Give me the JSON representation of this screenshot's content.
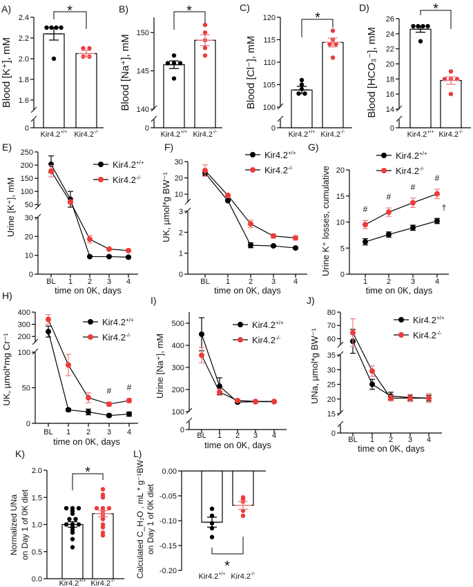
{
  "chart_data": [
    {
      "id": "A",
      "panel_label": "A)",
      "type": "bar",
      "ylabel": "Blood [K⁺], mM",
      "y_axis_segments": [
        [
          0,
          0
        ],
        [
          1.5,
          2.4
        ]
      ],
      "yticks": [
        "0",
        "1.6",
        "1.8",
        "2.0",
        "2.2",
        "2.4"
      ],
      "categories": [
        {
          "label": "Kir4.2",
          "sup": "+/+"
        },
        {
          "label": "Kir4.2",
          "sup": "-/-"
        }
      ],
      "series": [
        {
          "mean": 2.24,
          "sem": 0.06,
          "points": [
            2.3,
            2.3,
            2.3,
            2.3,
            2.0
          ],
          "color": "#000000"
        },
        {
          "mean": 2.05,
          "sem": 0.03,
          "points": [
            2.1,
            2.1,
            2.02,
            2.02
          ],
          "color": "#ee3a3a"
        }
      ],
      "significance": "*"
    },
    {
      "id": "B",
      "panel_label": "B)",
      "type": "bar",
      "ylabel": "Blood [Na⁺], mM",
      "y_axis_segments": [
        [
          0,
          0
        ],
        [
          140,
          152
        ]
      ],
      "yticks": [
        "0",
        "140",
        "145",
        "150"
      ],
      "categories": [
        {
          "label": "Kir4.2",
          "sup": "+/+"
        },
        {
          "label": "Kir4.2",
          "sup": "-/-"
        }
      ],
      "series": [
        {
          "mean": 145.8,
          "sem": 0.5,
          "points": [
            147,
            146,
            146,
            146,
            144
          ],
          "color": "#000000"
        },
        {
          "mean": 149,
          "sem": 0.7,
          "points": [
            151,
            150,
            149,
            148,
            147
          ],
          "color": "#ee3a3a"
        }
      ],
      "significance": "*"
    },
    {
      "id": "C",
      "panel_label": "C)",
      "type": "bar",
      "ylabel": "Blood [Cl⁻], mM",
      "y_axis_segments": [
        [
          0,
          0
        ],
        [
          100,
          120
        ]
      ],
      "yticks": [
        "0",
        "100",
        "105",
        "110",
        "115",
        "120"
      ],
      "categories": [
        {
          "label": "Kir4.2",
          "sup": "+/+"
        },
        {
          "label": "Kir4.2",
          "sup": "-/-"
        }
      ],
      "series": [
        {
          "mean": 103.8,
          "sem": 0.8,
          "points": [
            106,
            105,
            104,
            103,
            103
          ],
          "color": "#000000"
        },
        {
          "mean": 114.4,
          "sem": 1.0,
          "points": [
            117,
            115,
            114,
            114,
            111
          ],
          "color": "#ee3a3a"
        }
      ],
      "significance": "*"
    },
    {
      "id": "D",
      "panel_label": "D)",
      "type": "bar",
      "ylabel": "Blood [HCO₃⁻], mM",
      "y_axis_segments": [
        [
          0,
          0
        ],
        [
          14,
          26
        ]
      ],
      "yticks": [
        "0",
        "14",
        "16",
        "18",
        "20",
        "22",
        "24",
        "26"
      ],
      "categories": [
        {
          "label": "Kir4.2",
          "sup": "+/+"
        },
        {
          "label": "Kir4.2",
          "sup": "-/-"
        }
      ],
      "series": [
        {
          "mean": 24.6,
          "sem": 0.4,
          "points": [
            25,
            25,
            25,
            25,
            23
          ],
          "color": "#000000"
        },
        {
          "mean": 17.8,
          "sem": 0.5,
          "points": [
            19,
            18,
            18,
            18,
            16
          ],
          "color": "#ee3a3a"
        }
      ],
      "significance": "*"
    },
    {
      "id": "E",
      "panel_label": "E)",
      "type": "line",
      "ylabel": "Urine [K⁺], mM",
      "xlabel": "time on 0K, days",
      "x_categories": [
        "BL",
        "1",
        "2",
        "3",
        "4"
      ],
      "y_axis_segments": [
        [
          0,
          30
        ],
        [
          40,
          250
        ]
      ],
      "yticks": [
        "0",
        "10",
        "20",
        "30",
        "50",
        "100",
        "150",
        "200",
        "250"
      ],
      "series": [
        {
          "name": {
            "label": "Kir4.2",
            "sup": "+/+"
          },
          "color": "#000000",
          "values": [
            203,
            70,
            9.3,
            9.3,
            9
          ],
          "sem": [
            32,
            30,
            0.3,
            0.3,
            0.4
          ]
        },
        {
          "name": {
            "label": "Kir4.2",
            "sup": "-/-"
          },
          "color": "#ee3a3a",
          "values": [
            177,
            60,
            18.5,
            13.3,
            12.5
          ],
          "sem": [
            22,
            8,
            2,
            0.6,
            0.5
          ]
        }
      ],
      "annotations": []
    },
    {
      "id": "F",
      "panel_label": "F)",
      "type": "line",
      "ylabel": "UK, µmol*g BW⁻¹",
      "xlabel": "time on 0K, days",
      "x_categories": [
        "BL",
        "1",
        "2",
        "3",
        "4"
      ],
      "y_axis_segments": [
        [
          0,
          3
        ],
        [
          5,
          30
        ]
      ],
      "yticks": [
        "0",
        "1",
        "2",
        "3",
        "10",
        "20",
        "30"
      ],
      "series": [
        {
          "name": {
            "label": "Kir4.2",
            "sup": "+/+"
          },
          "color": "#000000",
          "values": [
            23,
            6,
            1.38,
            1.35,
            1.25
          ],
          "sem": [
            1.5,
            0.5,
            0.12,
            0.05,
            0.05
          ]
        },
        {
          "name": {
            "label": "Kir4.2",
            "sup": "-/-"
          },
          "color": "#ee3a3a",
          "values": [
            24.5,
            9.3,
            2.4,
            1.82,
            1.73
          ],
          "sem": [
            3.5,
            0.5,
            0.18,
            0.1,
            0.1
          ]
        }
      ],
      "annotations": []
    },
    {
      "id": "G",
      "panel_label": "G)",
      "type": "line",
      "ylabel": "Urine K⁺ losses, cumulative",
      "xlabel": "time on 0K, days",
      "x_categories": [
        "1",
        "2",
        "3",
        "4"
      ],
      "y_axis_segments": [
        [
          0,
          20
        ]
      ],
      "yticks": [
        "0",
        "5",
        "10",
        "15",
        "20"
      ],
      "series": [
        {
          "name": {
            "label": "Kir4.2",
            "sup": "+/+"
          },
          "color": "#000000",
          "values": [
            6.2,
            7.6,
            8.9,
            10.2
          ],
          "sem": [
            0.6,
            0.5,
            0.5,
            0.5
          ]
        },
        {
          "name": {
            "label": "Kir4.2",
            "sup": "-/-"
          },
          "color": "#ee3a3a",
          "values": [
            9.5,
            11.9,
            13.7,
            15.4
          ],
          "sem": [
            0.8,
            0.8,
            0.9,
            0.9
          ]
        }
      ],
      "annotations": [
        {
          "text": "#",
          "x": "1"
        },
        {
          "text": "#",
          "x": "2"
        },
        {
          "text": "#",
          "x": "3"
        },
        {
          "text": "#",
          "x": "4"
        },
        {
          "text": "†",
          "x": "4",
          "between_series": true
        }
      ]
    },
    {
      "id": "H",
      "panel_label": "H)",
      "type": "line",
      "ylabel": "UK, µmol*mg Cr⁻¹",
      "xlabel": "time on 0K, days",
      "x_categories": [
        "BL",
        "1",
        "2",
        "3",
        "4"
      ],
      "y_axis_segments": [
        [
          0,
          100
        ],
        [
          150,
          400
        ]
      ],
      "yticks": [
        "0",
        "50",
        "100",
        "200",
        "300",
        "400"
      ],
      "series": [
        {
          "name": {
            "label": "Kir4.2",
            "sup": "+/+"
          },
          "color": "#000000",
          "values": [
            240,
            19,
            16,
            11,
            13
          ],
          "sem": [
            45,
            2,
            4,
            2,
            3
          ]
        },
        {
          "name": {
            "label": "Kir4.2",
            "sup": "-/-"
          },
          "color": "#ee3a3a",
          "values": [
            340,
            82,
            36,
            27,
            32
          ],
          "sem": [
            40,
            15,
            7,
            3,
            3
          ]
        }
      ],
      "annotations": [
        {
          "text": "#",
          "x": "3"
        },
        {
          "text": "#",
          "x": "4"
        }
      ]
    },
    {
      "id": "I",
      "panel_label": "I)",
      "type": "line",
      "ylabel": "Urine [Na⁺], mM",
      "xlabel": "time on 0K, days",
      "x_categories": [
        "BL",
        "1",
        "2",
        "3",
        "4"
      ],
      "y_axis_segments": [
        [
          0,
          0
        ],
        [
          100,
          550
        ]
      ],
      "yticks": [
        "0",
        "100",
        "200",
        "300",
        "400",
        "500"
      ],
      "series": [
        {
          "name": {
            "label": "Kir4.2",
            "sup": "+/+"
          },
          "color": "#000000",
          "values": [
            450,
            215,
            143,
            145,
            145
          ],
          "sem": [
            75,
            38,
            5,
            4,
            4
          ]
        },
        {
          "name": {
            "label": "Kir4.2",
            "sup": "-/-"
          },
          "color": "#ee3a3a",
          "values": [
            355,
            188,
            150,
            146,
            146
          ],
          "sem": [
            35,
            14,
            5,
            4,
            4
          ]
        }
      ],
      "annotations": []
    },
    {
      "id": "J",
      "panel_label": "J)",
      "type": "line",
      "ylabel": "UNa, µmol*g BW⁻¹",
      "xlabel": "time on 0K, days",
      "x_categories": [
        "BL",
        "1",
        "2",
        "3",
        "4"
      ],
      "y_axis_segments": [
        [
          0,
          0
        ],
        [
          15,
          35
        ],
        [
          55,
          80
        ]
      ],
      "yticks": [
        "0",
        "15",
        "20",
        "25",
        "30",
        "35",
        "60",
        "70",
        "80"
      ],
      "series": [
        {
          "name": {
            "label": "Kir4.2",
            "sup": "+/+"
          },
          "color": "#000000",
          "values": [
            58,
            25,
            21,
            20.5,
            20.3
          ],
          "sem": [
            9,
            1.7,
            1.3,
            1,
            1
          ]
        },
        {
          "name": {
            "label": "Kir4.2",
            "sup": "-/-"
          },
          "color": "#ee3a3a",
          "values": [
            64.5,
            29.5,
            20.3,
            20.3,
            20.3
          ],
          "sem": [
            10.5,
            1.8,
            1,
            1.2,
            1.5
          ]
        }
      ],
      "annotations": []
    },
    {
      "id": "K",
      "panel_label": "K)",
      "type": "bar",
      "ylabel": "Normalized UNa",
      "ylabel2": "on Day 1 of 0K diet",
      "y_axis_segments": [
        [
          0,
          2
        ]
      ],
      "yticks": [
        "0.0",
        "0.5",
        "1.0",
        "1.5",
        "2.0"
      ],
      "categories": [
        {
          "label": "Kir4.2",
          "sup": "+/+"
        },
        {
          "label": "Kir4.2",
          "sup": "-/-"
        }
      ],
      "series": [
        {
          "mean": 1.0,
          "sem": 0.05,
          "points": [
            1.3,
            1.3,
            1.3,
            1.25,
            1.2,
            1.1,
            1.1,
            1.0,
            1.0,
            1.0,
            0.95,
            0.9,
            0.85,
            0.73,
            0.58
          ],
          "color": "#000000"
        },
        {
          "mean": 1.2,
          "sem": 0.06,
          "points": [
            1.65,
            1.55,
            1.5,
            1.3,
            1.3,
            1.3,
            1.25,
            1.2,
            1.15,
            1.1,
            1.0,
            0.95,
            0.85,
            0.8
          ],
          "color": "#ee3a3a"
        }
      ],
      "significance": "*"
    },
    {
      "id": "L",
      "panel_label": "L)",
      "type": "bar",
      "ylabel": "Calculated C_H₂O , mL * g⁻¹BW",
      "ylabel2": "on Day 1 of 0K diet",
      "y_axis_segments": [
        [
          -0.2,
          0
        ]
      ],
      "yticks": [
        "-0.20",
        "-0.15",
        "-0.10",
        "-0.05",
        "0.00"
      ],
      "categories": [
        {
          "label": "Kir4.2",
          "sup": "+/+"
        },
        {
          "label": "Kir4.2",
          "sup": "-/-"
        }
      ],
      "series": [
        {
          "mean": -0.103,
          "sem": 0.01,
          "points": [
            -0.076,
            -0.09,
            -0.105,
            -0.115,
            -0.133
          ],
          "color": "#000000"
        },
        {
          "mean": -0.069,
          "sem": 0.008,
          "points": [
            -0.053,
            -0.057,
            -0.062,
            -0.08,
            -0.09
          ],
          "color": "#ee3a3a"
        }
      ],
      "significance": "*"
    }
  ]
}
